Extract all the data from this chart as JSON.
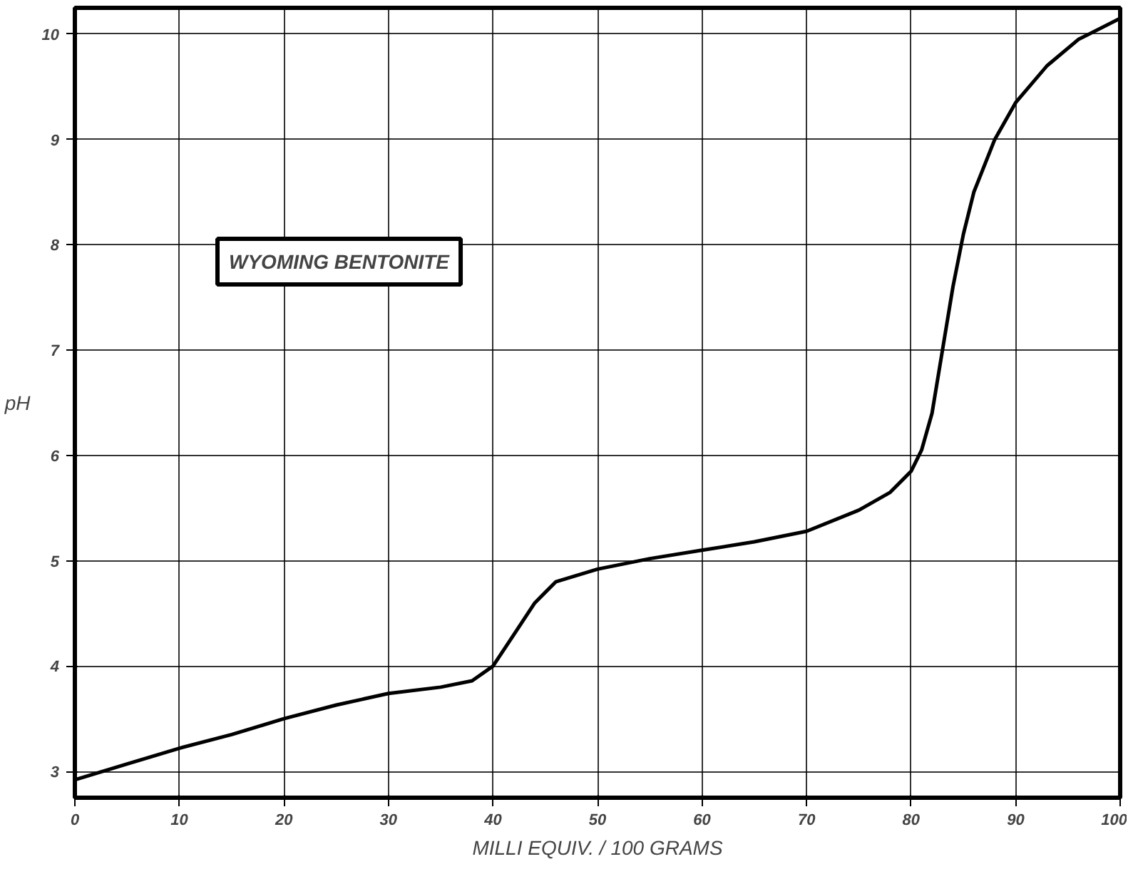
{
  "chart_data": {
    "type": "line",
    "xlabel": "MILLI EQUIV. / 100 GRAMS",
    "ylabel": "pH",
    "annotations": [
      "WYOMING BENTONITE"
    ],
    "x": [
      0,
      5,
      10,
      15,
      20,
      25,
      30,
      35,
      38,
      40,
      42,
      44,
      46,
      50,
      55,
      60,
      65,
      70,
      75,
      78,
      80,
      81,
      82,
      83,
      84,
      85,
      86,
      88,
      90,
      93,
      96,
      100
    ],
    "series": [
      {
        "color": "#000000",
        "values": [
          2.92,
          3.07,
          3.22,
          3.35,
          3.5,
          3.63,
          3.74,
          3.8,
          3.86,
          4.0,
          4.3,
          4.6,
          4.8,
          4.92,
          5.02,
          5.1,
          5.18,
          5.28,
          5.48,
          5.65,
          5.85,
          6.05,
          6.4,
          7.0,
          7.6,
          8.1,
          8.5,
          9.0,
          9.35,
          9.7,
          9.95,
          10.15
        ]
      }
    ],
    "xlim": [
      0,
      100
    ],
    "ylim": [
      2.75,
      10.25
    ],
    "xticks": [
      0,
      10,
      20,
      30,
      40,
      50,
      60,
      70,
      80,
      90,
      100
    ],
    "yticks": [
      3,
      4,
      5,
      6,
      7,
      8,
      9,
      10
    ],
    "grid": true,
    "marker": "none",
    "line_style": "solid"
  }
}
